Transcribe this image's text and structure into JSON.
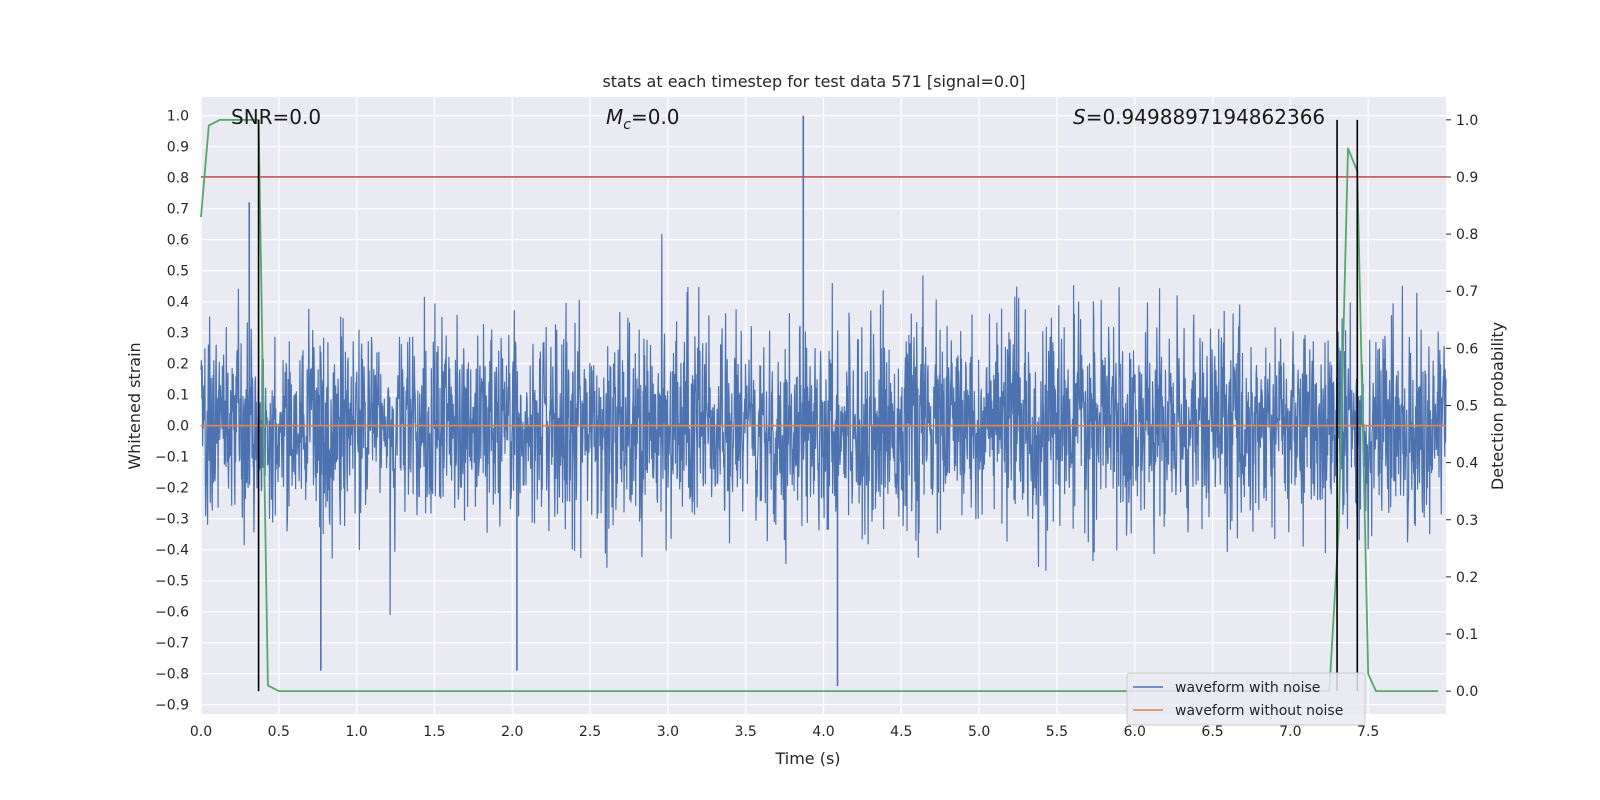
{
  "chart_data": {
    "type": "line",
    "title": "stats at each timestep for test data 571 [signal=0.0]",
    "xlabel": "Time (s)",
    "ylabel": "Whitened strain",
    "y2label": "Detection probability",
    "xlim": [
      0.0,
      8.0
    ],
    "ylim": [
      -0.93,
      1.06
    ],
    "y2lim": [
      -0.04,
      1.04
    ],
    "xticks": [
      "0.0",
      "0.5",
      "1.0",
      "1.5",
      "2.0",
      "2.5",
      "3.0",
      "3.5",
      "4.0",
      "4.5",
      "5.0",
      "5.5",
      "6.0",
      "6.5",
      "7.0",
      "7.5"
    ],
    "xtick_values": [
      0.0,
      0.5,
      1.0,
      1.5,
      2.0,
      2.5,
      3.0,
      3.5,
      4.0,
      4.5,
      5.0,
      5.5,
      6.0,
      6.5,
      7.0,
      7.5
    ],
    "yticks": [
      "1.0",
      "0.9",
      "0.8",
      "0.7",
      "0.6",
      "0.5",
      "0.4",
      "0.3",
      "0.2",
      "0.1",
      "0.0",
      "-0.1",
      "-0.2",
      "-0.3",
      "-0.4",
      "-0.5",
      "-0.6",
      "-0.7",
      "-0.8",
      "-0.9"
    ],
    "ytick_values": [
      1.0,
      0.9,
      0.8,
      0.7,
      0.6,
      0.5,
      0.4,
      0.3,
      0.2,
      0.1,
      0.0,
      -0.1,
      -0.2,
      -0.3,
      -0.4,
      -0.5,
      -0.6,
      -0.7,
      -0.8,
      -0.9
    ],
    "y2ticks": [
      "1.0",
      "0.9",
      "0.8",
      "0.7",
      "0.6",
      "0.5",
      "0.4",
      "0.3",
      "0.2",
      "0.1",
      "0.0"
    ],
    "y2tick_values": [
      1.0,
      0.9,
      0.8,
      0.7,
      0.6,
      0.5,
      0.4,
      0.3,
      0.2,
      0.1,
      0.0
    ],
    "grid": true,
    "legend_position": "bottom-right",
    "annotations": {
      "snr": "SNR=0.0",
      "mc_symbol": "M",
      "mc_sub": "c",
      "mc_value": "=0.0",
      "s_symbol": "S",
      "s_value": "=0.9498897194862366"
    },
    "series": [
      {
        "name": "waveform with noise",
        "color": "#4c72b0",
        "description": "dense noisy whitened strain, amplitude mostly within ±0.5",
        "noise_sigma": 0.16,
        "notable_peaks": [
          {
            "t": 3.87,
            "y": 1.0
          },
          {
            "t": 4.09,
            "y": -0.84
          },
          {
            "t": 0.31,
            "y": 0.72
          },
          {
            "t": 2.03,
            "y": -0.79
          },
          {
            "t": 0.77,
            "y": -0.79
          }
        ]
      },
      {
        "name": "waveform without noise",
        "color": "#dd8452",
        "values_constant": 0.0
      },
      {
        "name": "detection probability",
        "color": "#55a868",
        "axis": "right",
        "x": [
          0.0,
          0.05,
          0.12,
          0.2,
          0.3,
          0.37,
          0.43,
          0.5,
          7.25,
          7.31,
          7.37,
          7.43,
          7.5,
          7.55,
          7.95
        ],
        "y": [
          0.83,
          0.99,
          1.0,
          1.0,
          1.0,
          1.0,
          0.01,
          0.0,
          0.0,
          0.28,
          0.95,
          0.91,
          0.03,
          0.0,
          0.0
        ]
      }
    ],
    "threshold_line": {
      "y2": 0.9,
      "color": "#c44e52"
    },
    "vertical_markers": {
      "x": [
        0.37,
        7.3,
        7.43
      ],
      "color": "#000000",
      "y2_range": [
        0.0,
        1.0
      ]
    }
  }
}
